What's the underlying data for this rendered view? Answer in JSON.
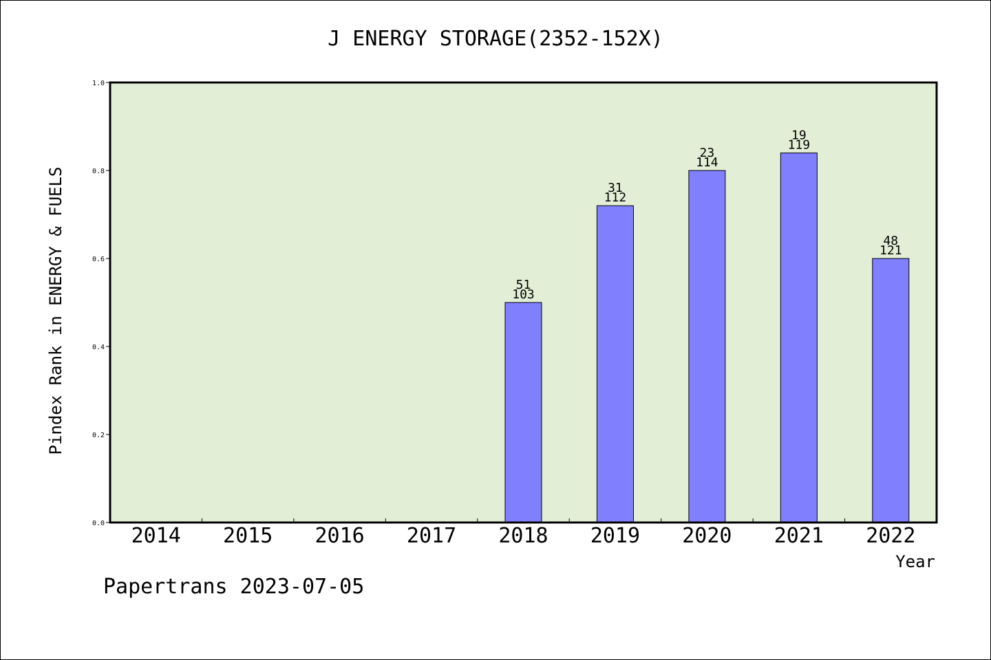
{
  "chart_data": {
    "type": "bar",
    "title": "J ENERGY STORAGE(2352-152X)",
    "xlabel": "Year",
    "ylabel": "Pindex Rank in ENERGY & FUELS",
    "categories": [
      "2014",
      "2015",
      "2016",
      "2017",
      "2018",
      "2019",
      "2020",
      "2021",
      "2022"
    ],
    "values": [
      null,
      null,
      null,
      null,
      0.5,
      0.72,
      0.8,
      0.84,
      0.6
    ],
    "labels_top": [
      "",
      "",
      "",
      "",
      "51",
      "31",
      "23",
      "19",
      "48"
    ],
    "labels_bottom": [
      "",
      "",
      "",
      "",
      "103",
      "112",
      "114",
      "119",
      "121"
    ],
    "ylim": [
      0,
      1.0
    ],
    "yticks": [
      "0.0",
      "0.2",
      "0.4",
      "0.6",
      "0.8",
      "1.0"
    ],
    "grid": false,
    "legend": "none"
  },
  "colors": {
    "plot_background": "#e2efd6",
    "bar_fill": "#8080ff",
    "bar_stroke": "#000000",
    "axis": "#000000"
  },
  "footer": "Papertrans 2023-07-05"
}
